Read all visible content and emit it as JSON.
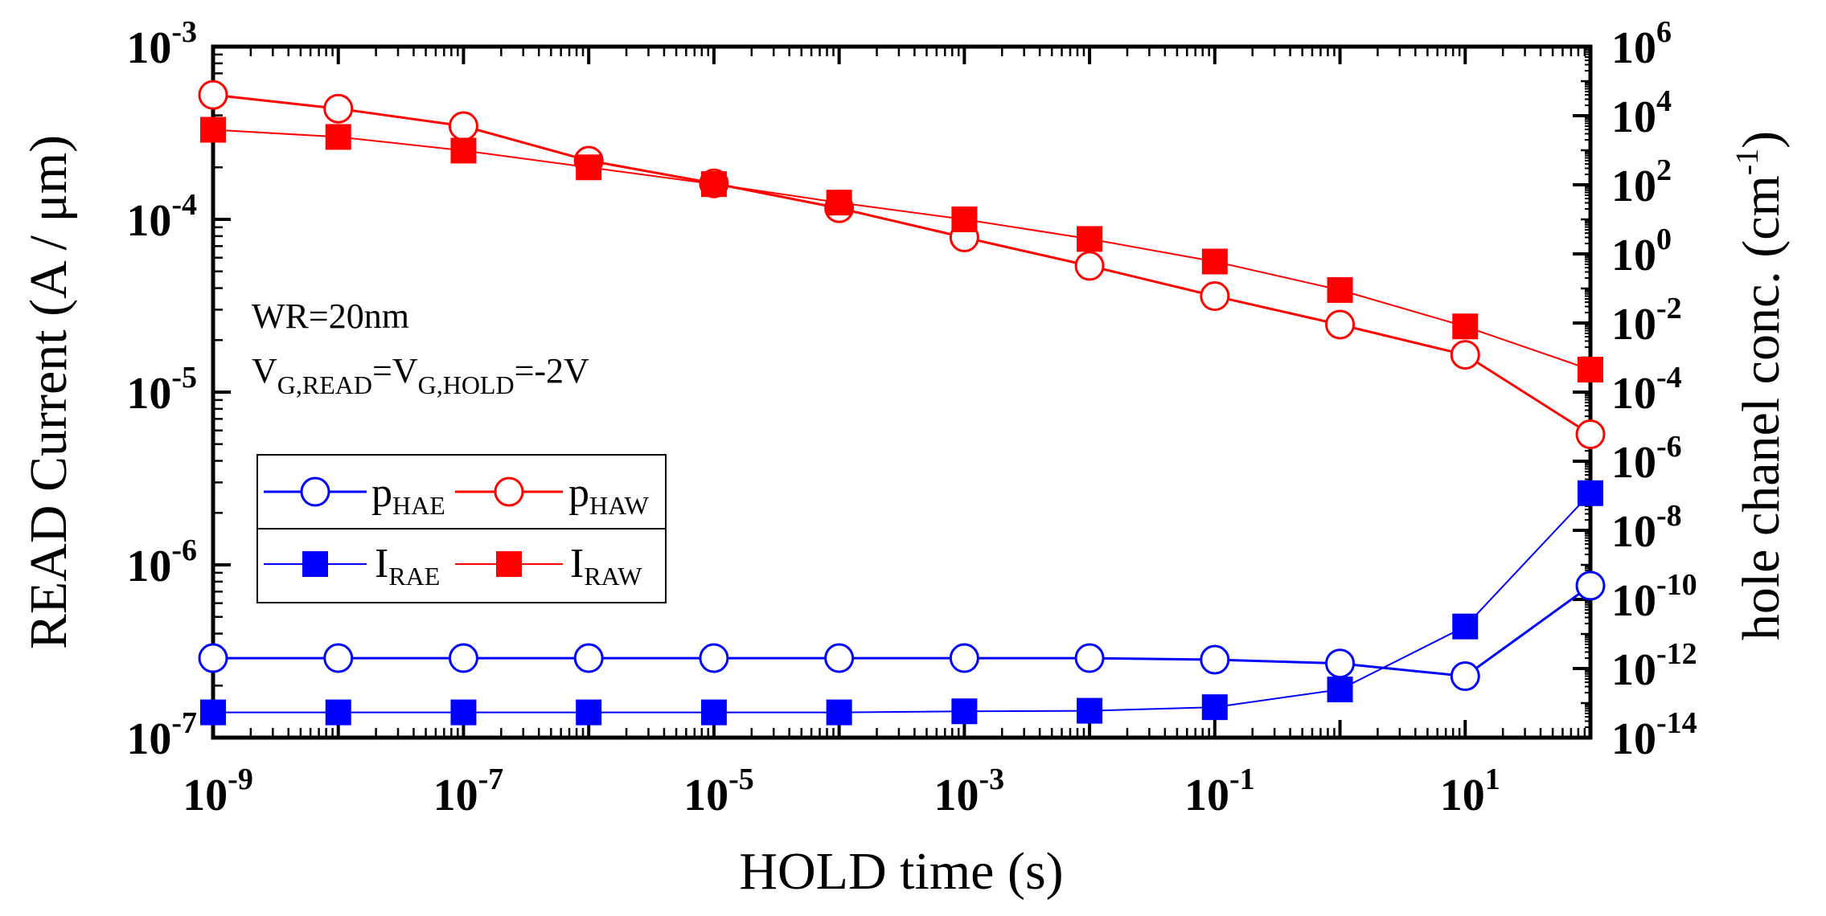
{
  "chart_data": {
    "type": "line",
    "x_scale": "log",
    "xlabel": "HOLD time (s)",
    "ylabel_left": "READ Current (A / μm)",
    "ylabel_right_main": "hole chanel conc. (cm",
    "ylabel_right_exp": "-1",
    "ylabel_right_close": ")",
    "xlim_exp": [
      -9,
      2
    ],
    "ylim_left_exp": [
      -7,
      -3
    ],
    "ylim_right_exp": [
      -14,
      6
    ],
    "x_ticks": [
      {
        "base": "10",
        "exp": "-9",
        "value": -9
      },
      {
        "base": "10",
        "exp": "-7",
        "value": -7
      },
      {
        "base": "10",
        "exp": "-5",
        "value": -5
      },
      {
        "base": "10",
        "exp": "-3",
        "value": -3
      },
      {
        "base": "10",
        "exp": "-1",
        "value": -1
      },
      {
        "base": "10",
        "exp": "1",
        "value": 1
      }
    ],
    "y_left_ticks": [
      {
        "base": "10",
        "exp": "-3",
        "value": -3
      },
      {
        "base": "10",
        "exp": "-4",
        "value": -4
      },
      {
        "base": "10",
        "exp": "-5",
        "value": -5
      },
      {
        "base": "10",
        "exp": "-6",
        "value": -6
      },
      {
        "base": "10",
        "exp": "-7",
        "value": -7
      }
    ],
    "y_right_ticks": [
      {
        "base": "10",
        "exp": "6",
        "value": 6
      },
      {
        "base": "10",
        "exp": "4",
        "value": 4
      },
      {
        "base": "10",
        "exp": "2",
        "value": 2
      },
      {
        "base": "10",
        "exp": "0",
        "value": 0
      },
      {
        "base": "10",
        "exp": "-2",
        "value": -2
      },
      {
        "base": "10",
        "exp": "-4",
        "value": -4
      },
      {
        "base": "10",
        "exp": "-6",
        "value": -6
      },
      {
        "base": "10",
        "exp": "-8",
        "value": -8
      },
      {
        "base": "10",
        "exp": "-10",
        "value": -10
      },
      {
        "base": "10",
        "exp": "-12",
        "value": -12
      },
      {
        "base": "10",
        "exp": "-14",
        "value": -14
      }
    ],
    "x": [
      1e-09,
      1e-08,
      1e-07,
      1e-06,
      1e-05,
      0.0001,
      0.001,
      0.01,
      0.1,
      1,
      10,
      100
    ],
    "series": [
      {
        "name": "p_HAE",
        "label_main": "p",
        "label_sub": "HAE",
        "axis": "right",
        "color": "#0000ff",
        "marker": "open-circle",
        "line_weight": "medium",
        "values": [
          2e-12,
          2e-12,
          2e-12,
          2e-12,
          2e-12,
          2e-12,
          2e-12,
          2e-12,
          1.8e-12,
          1.4e-12,
          6e-13,
          2.5e-10
        ]
      },
      {
        "name": "p_HAW",
        "label_main": "p",
        "label_sub": "HAW",
        "axis": "right",
        "color": "#ff0000",
        "marker": "open-circle",
        "line_weight": "medium",
        "values": [
          40000.0,
          16000.0,
          5000.0,
          500.0,
          110.0,
          21,
          3.0,
          0.45,
          0.06,
          0.009,
          0.0012,
          6e-06
        ]
      },
      {
        "name": "I_RAE",
        "label_main": "I",
        "label_sub": "RAE",
        "axis": "left",
        "color": "#0000ff",
        "marker": "filled-square",
        "line_weight": "thin",
        "values": [
          1.4e-07,
          1.4e-07,
          1.4e-07,
          1.4e-07,
          1.4e-07,
          1.4e-07,
          1.42e-07,
          1.43e-07,
          1.5e-07,
          1.9e-07,
          4.4e-07,
          2.6e-06
        ]
      },
      {
        "name": "I_RAW",
        "label_main": "I",
        "label_sub": "RAW",
        "axis": "left",
        "color": "#ff0000",
        "marker": "filled-square",
        "line_weight": "thin",
        "values": [
          0.00033,
          0.0003,
          0.00025,
          0.0002,
          0.00016,
          0.000125,
          0.0001,
          7.7e-05,
          5.7e-05,
          3.9e-05,
          2.4e-05,
          1.35e-05
        ]
      }
    ],
    "annotation_line1": "WR=20nm",
    "annotation_line2": {
      "p1": "V",
      "s1": "G,READ",
      "p2": "=V",
      "s2": "G,HOLD",
      "p3": "=-2V"
    }
  }
}
